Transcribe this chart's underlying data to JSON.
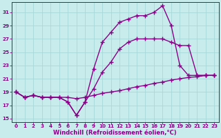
{
  "xlabel": "Windchill (Refroidissement éolien,°C)",
  "background_color": "#c8ecec",
  "grid_color": "#a8d8d8",
  "line_color": "#880088",
  "xlim": [
    -0.5,
    23.5
  ],
  "ylim": [
    14.5,
    32.5
  ],
  "xticks": [
    0,
    1,
    2,
    3,
    4,
    5,
    6,
    7,
    8,
    9,
    10,
    11,
    12,
    13,
    14,
    15,
    16,
    17,
    18,
    19,
    20,
    21,
    22,
    23
  ],
  "yticks": [
    15,
    17,
    19,
    21,
    23,
    25,
    27,
    29,
    31
  ],
  "line1_x": [
    0,
    1,
    2,
    3,
    4,
    5,
    6,
    7,
    8,
    9,
    10,
    11,
    12,
    13,
    14,
    15,
    16,
    17,
    18,
    19,
    20,
    21,
    22,
    23
  ],
  "line1_y": [
    19.0,
    18.2,
    18.5,
    18.2,
    18.2,
    18.2,
    18.2,
    18.0,
    18.2,
    18.5,
    18.8,
    19.0,
    19.2,
    19.5,
    19.8,
    20.0,
    20.3,
    20.5,
    20.8,
    21.0,
    21.2,
    21.3,
    21.5,
    21.5
  ],
  "line2_x": [
    0,
    1,
    2,
    3,
    4,
    5,
    6,
    7,
    8,
    9,
    10,
    11,
    12,
    13,
    14,
    15,
    16,
    17,
    18,
    19,
    20,
    21,
    22,
    23
  ],
  "line2_y": [
    19.0,
    18.2,
    18.5,
    18.2,
    18.2,
    18.2,
    17.5,
    15.5,
    17.5,
    19.5,
    22.0,
    23.5,
    25.5,
    26.5,
    27.0,
    27.0,
    27.0,
    27.0,
    26.5,
    26.0,
    26.0,
    21.5,
    21.5,
    21.5
  ],
  "line3_x": [
    0,
    1,
    2,
    3,
    4,
    5,
    6,
    7,
    8,
    9,
    10,
    11,
    12,
    13,
    14,
    15,
    16,
    17,
    18,
    19,
    20,
    21,
    22,
    23
  ],
  "line3_y": [
    19.0,
    18.2,
    18.5,
    18.2,
    18.2,
    18.2,
    17.5,
    15.5,
    17.5,
    22.5,
    26.5,
    28.0,
    29.5,
    30.0,
    30.5,
    30.5,
    31.0,
    32.0,
    29.0,
    23.0,
    21.5,
    21.5,
    21.5,
    21.5
  ],
  "marker": "+",
  "markersize": 4,
  "linewidth": 1.0,
  "tick_fontsize": 5.2,
  "label_fontsize": 6.0,
  "tick_color": "#880088",
  "label_color": "#880088"
}
